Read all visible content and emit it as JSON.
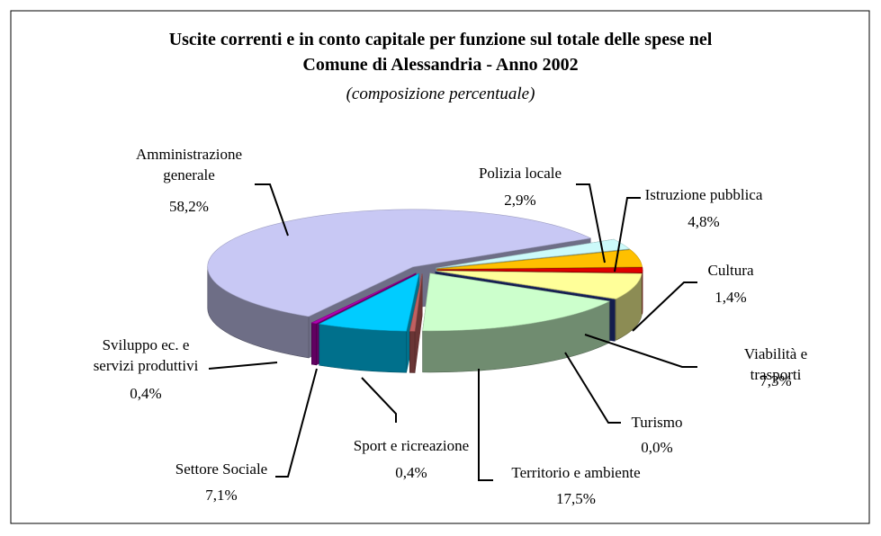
{
  "chart_data": {
    "type": "pie3d",
    "title": "Uscite correnti e in conto capitale per funzione sul totale delle spese nel\nComune di Alessandria - Anno 2002",
    "subtitle": "(composizione percentuale)",
    "categories": [
      "Amministrazione\ngenerale",
      "Polizia locale",
      "Istruzione pubblica",
      "Cultura",
      "Viabilità e trasporti",
      "Turismo",
      "Territorio e ambiente",
      "Sport e ricreazione",
      "Settore Sociale",
      "Sviluppo ec. e\nservizi produttivi"
    ],
    "values": [
      58.2,
      2.9,
      4.8,
      1.4,
      7.3,
      0.0,
      17.5,
      0.4,
      7.1,
      0.4
    ],
    "value_labels": [
      "58,2%",
      "2,9%",
      "4,8%",
      "1,4%",
      "7,3%",
      "0,0%",
      "17,5%",
      "0,4%",
      "7,1%",
      "0,4%"
    ],
    "colors": [
      "#c8c8f4",
      "#ccfafa",
      "#ffc000",
      "#e00000",
      "#ffff99",
      "#24348c",
      "#ccffcc",
      "#c06060",
      "#00ccff",
      "#b000b0"
    ]
  }
}
